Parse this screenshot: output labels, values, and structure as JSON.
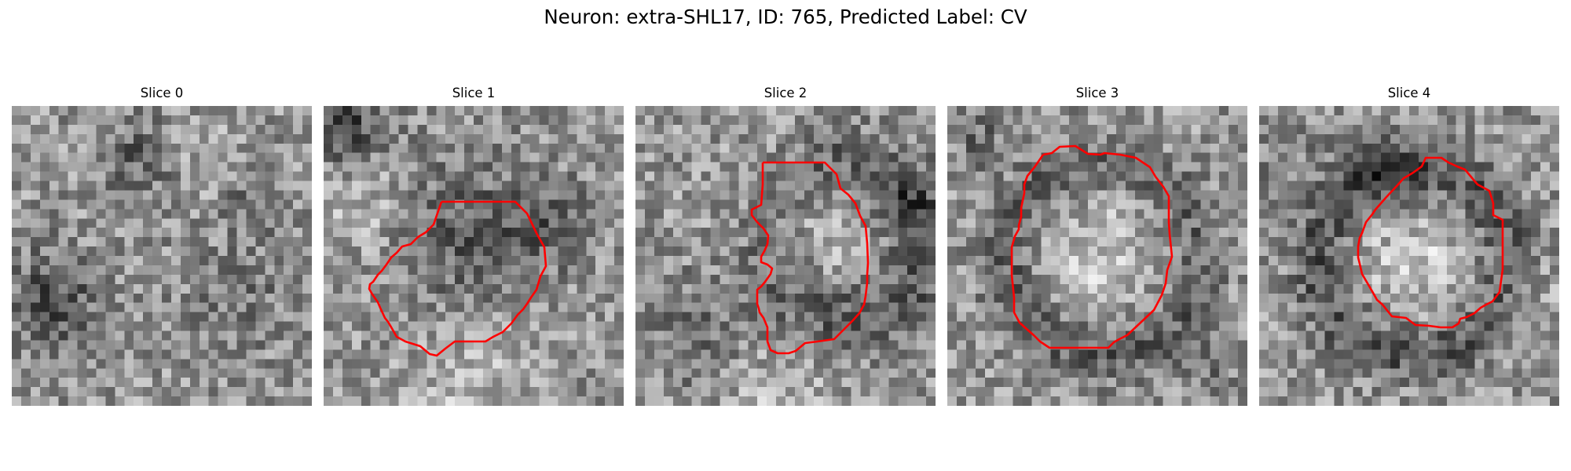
{
  "figure": {
    "title": "Neuron: extra-SHL17, ID: 765, Predicted Label: CV",
    "panels": [
      {
        "title": "Slice 0",
        "has_contour": false
      },
      {
        "title": "Slice 1",
        "has_contour": true
      },
      {
        "title": "Slice 2",
        "has_contour": true
      },
      {
        "title": "Slice 3",
        "has_contour": true
      },
      {
        "title": "Slice 4",
        "has_contour": true
      }
    ],
    "image_colormap": "grayscale",
    "contour_color": "#ff0000"
  }
}
